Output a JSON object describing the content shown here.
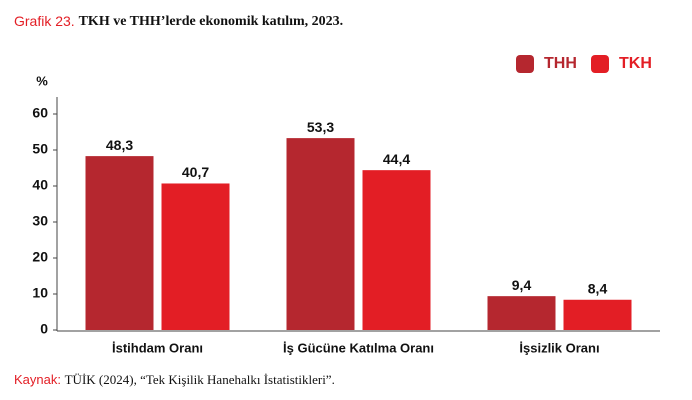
{
  "chart_data": {
    "type": "bar",
    "title_prefix": "Grafik 23.",
    "title": "TKH ve THH’lerde ekonomik katılım, 2023.",
    "y_label": "%",
    "categories": [
      "İstihdam Oranı",
      "İş Gücüne Katılma Oranı",
      "İşsizlik Oranı"
    ],
    "series": [
      {
        "name": "THH",
        "color": "#b5272f",
        "values": [
          48.3,
          53.3,
          9.4
        ],
        "value_labels": [
          "48,3",
          "53,3",
          "9,4"
        ]
      },
      {
        "name": "TKH",
        "color": "#e31e25",
        "values": [
          40.7,
          44.4,
          8.4
        ],
        "value_labels": [
          "40,7",
          "44,4",
          "8,4"
        ]
      }
    ],
    "ylim": [
      0,
      60
    ],
    "yticks": [
      0,
      10,
      20,
      30,
      40,
      50,
      60
    ],
    "grid": false,
    "legend": "top-right",
    "source_label": "Kaynak:",
    "source": "TÜİK (2024), “Tek Kişilik Hanehalkı İstatistikleri”."
  }
}
